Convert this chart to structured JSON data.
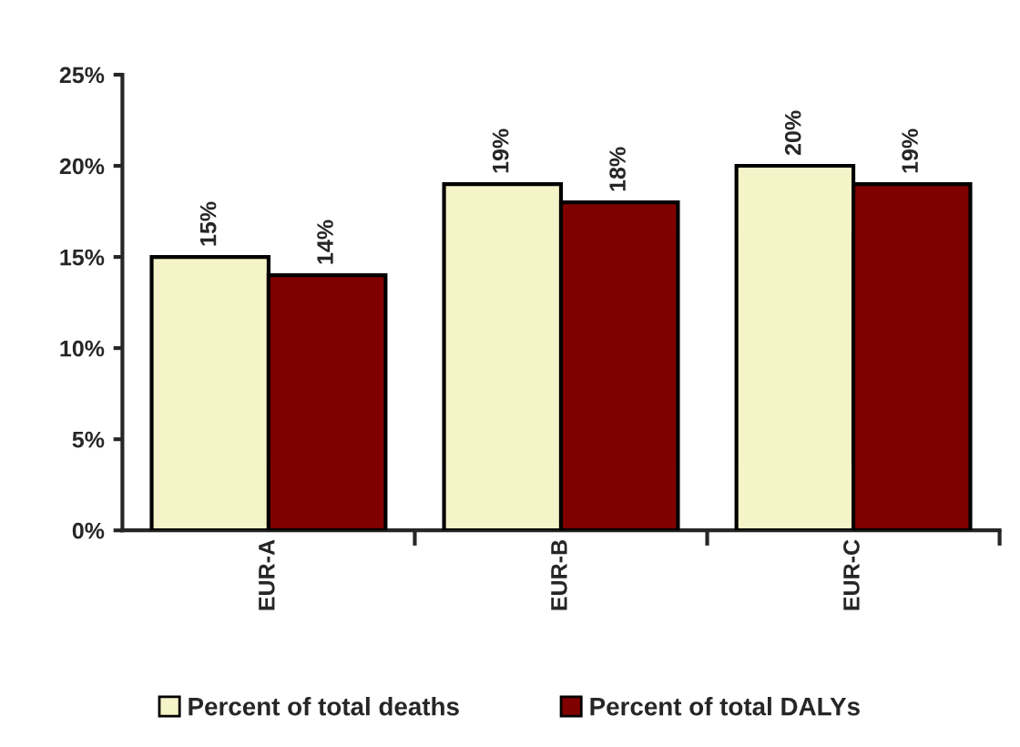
{
  "chart_data": {
    "type": "bar",
    "categories": [
      "EUR-A",
      "EUR-B",
      "EUR-C"
    ],
    "series": [
      {
        "name": "Percent of total deaths",
        "color": "#f5f3c8",
        "values": [
          15,
          19,
          20
        ],
        "value_labels": [
          "15%",
          "19%",
          "20%"
        ]
      },
      {
        "name": "Percent of total DALYs",
        "color": "#800000",
        "values": [
          14,
          18,
          19
        ],
        "value_labels": [
          "14%",
          "18%",
          "19%"
        ]
      }
    ],
    "ylim": [
      0,
      25
    ],
    "yticks": [
      {
        "value": 0,
        "label": "0%"
      },
      {
        "value": 5,
        "label": "5%"
      },
      {
        "value": 10,
        "label": "10%"
      },
      {
        "value": 15,
        "label": "15%"
      },
      {
        "value": 20,
        "label": "20%"
      },
      {
        "value": 25,
        "label": "25%"
      }
    ],
    "grid": false,
    "legend": "bottom"
  }
}
